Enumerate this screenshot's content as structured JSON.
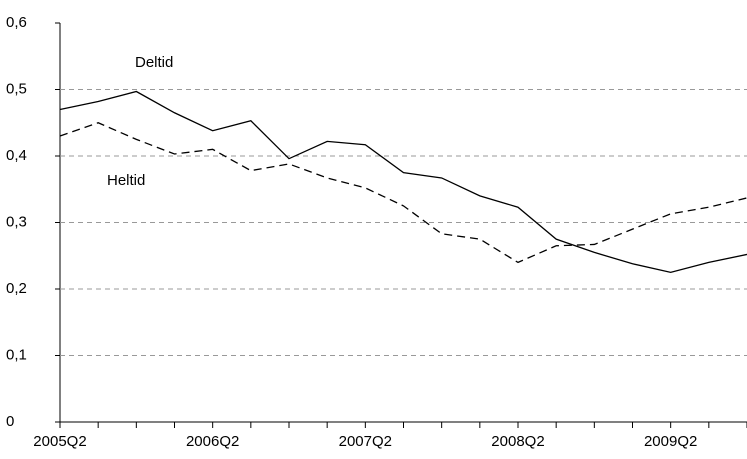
{
  "chart_data": {
    "type": "line",
    "categories": [
      "2005Q2",
      null,
      null,
      null,
      "2006Q2",
      null,
      null,
      null,
      "2007Q2",
      null,
      null,
      null,
      "2008Q2",
      null,
      null,
      null,
      "2009Q2",
      null,
      null
    ],
    "series": [
      {
        "name": "Deltid",
        "color": "#000000",
        "dashed": false,
        "values": [
          0.47,
          0.482,
          0.497,
          0.465,
          0.438,
          0.453,
          0.396,
          0.422,
          0.417,
          0.375,
          0.367,
          0.34,
          0.323,
          0.275,
          0.255,
          0.238,
          0.225,
          0.24,
          0.252
        ]
      },
      {
        "name": "Heltid",
        "color": "#000000",
        "dashed": true,
        "values": [
          0.43,
          0.45,
          0.425,
          0.403,
          0.41,
          0.378,
          0.388,
          0.367,
          0.352,
          0.325,
          0.283,
          0.275,
          0.24,
          0.265,
          0.267,
          0.29,
          0.313,
          0.323,
          0.337
        ]
      }
    ],
    "ylim": [
      0,
      0.6
    ],
    "yticks": [
      0,
      {
        "value": 0.1,
        "label": "0,1"
      },
      {
        "value": 0.2,
        "label": "0,2"
      },
      {
        "value": 0.3,
        "label": "0,3"
      },
      {
        "value": 0.4,
        "label": "0,4"
      },
      {
        "value": 0.5,
        "label": "0,5"
      },
      {
        "value": 0.6,
        "label": "0,6"
      }
    ],
    "grid": true
  }
}
